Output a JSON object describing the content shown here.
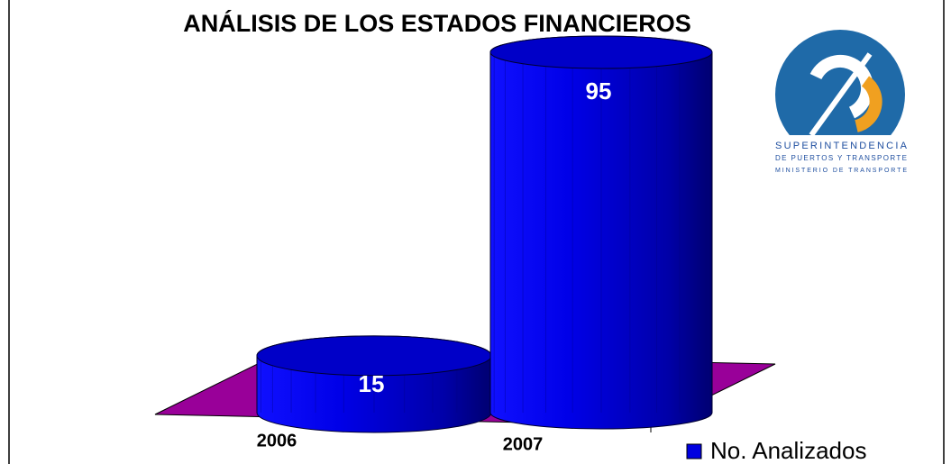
{
  "chart_data": {
    "type": "cylinder",
    "title": "ANÁLISIS DE LOS ESTADOS FINANCIEROS",
    "categories": [
      "2006",
      "2007"
    ],
    "series": [
      {
        "name": "No. Analizados",
        "color": "#0000e0",
        "values": [
          15,
          95
        ]
      }
    ],
    "floor_color": "#990099",
    "legend": "bottom-right"
  },
  "logo": {
    "lines": [
      "SUPERINTENDENCIA",
      "DE PUERTOS Y TRANSPORTE",
      "MINISTERIO DE TRANSPORTE"
    ]
  }
}
